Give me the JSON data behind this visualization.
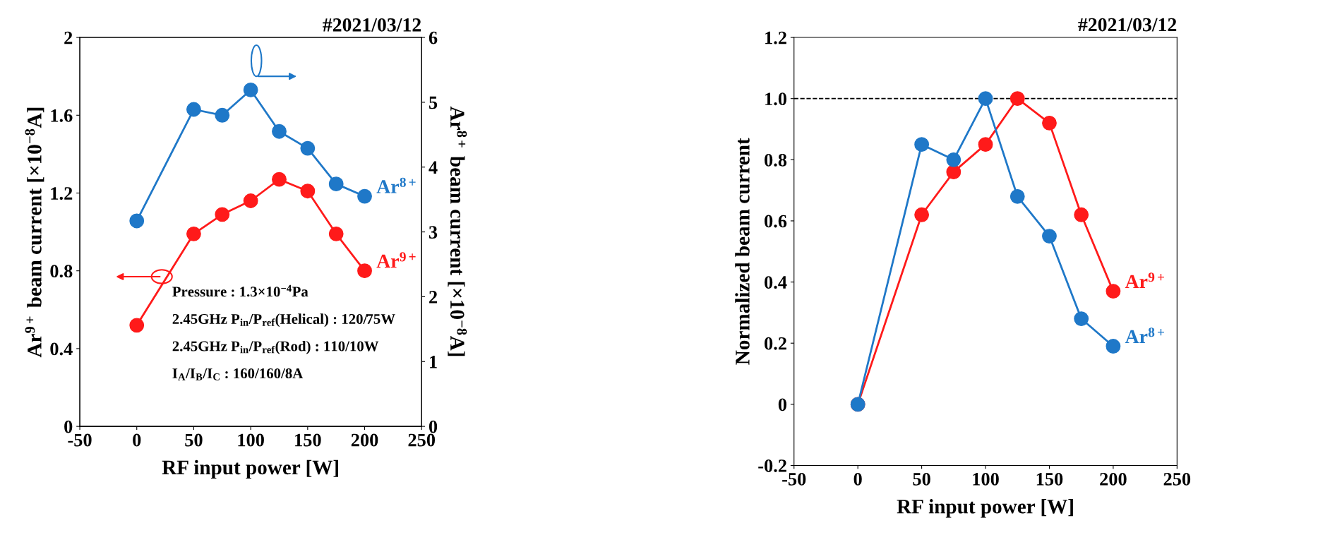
{
  "chart_data": [
    {
      "type": "line",
      "xlabel": "RF input power [W]",
      "ylabel": "Ar$^{9+}$ beam current [×10$^{−8}$A]",
      "y2label": "Ar$^{8+}$ beam current [×10$^{−8}$A]",
      "x": [
        0,
        50,
        75,
        100,
        125,
        150,
        175,
        200
      ],
      "series": [
        {
          "name": "Ar$^{8+}$",
          "color": "#1f78c8",
          "axis": "y2",
          "values": [
            3.17,
            4.89,
            4.8,
            5.19,
            4.55,
            4.29,
            3.74,
            3.55
          ]
        },
        {
          "name": "Ar$^{9+}$",
          "color": "#ff1a1a",
          "values": [
            0.52,
            0.99,
            1.09,
            1.16,
            1.27,
            1.21,
            0.99,
            0.8
          ]
        }
      ],
      "xlim": [
        -50,
        250
      ],
      "xticks": [
        {
          "value": -50,
          "label": "-50"
        },
        0,
        50,
        100,
        150,
        200,
        250
      ],
      "ylim": [
        0,
        2
      ],
      "yticks": [
        0,
        0.4,
        0.8,
        1.2,
        1.6,
        2
      ],
      "y2lim": [
        0,
        6
      ],
      "y2ticks": [
        0,
        1,
        2,
        3,
        4,
        5,
        6
      ],
      "marker": "circle",
      "grid": false,
      "legend": false,
      "annotations": [
        "#2021/03/12",
        "Pressure : 1.3×10$^{−4}$Pa",
        "2.45GHz P$_{in}$/P$_{ref}$(Helical) : 120/75W",
        "2.45GHz P$_{in}$/P$_{ref}$(Rod) : 110/10W",
        "I$_{A}$/I$_{B}$/I$_{C}$ : 160/160/8A"
      ]
    },
    {
      "type": "line",
      "xlabel": "RF input power [W]",
      "ylabel": "Normalized beam current",
      "x": [
        0,
        50,
        75,
        100,
        125,
        150,
        175,
        200
      ],
      "series": [
        {
          "name": "Ar$^{9+}$",
          "color": "#ff1a1a",
          "values": [
            0,
            0.62,
            0.76,
            0.85,
            1.0,
            0.92,
            0.62,
            0.37
          ]
        },
        {
          "name": "Ar$^{8+}$",
          "color": "#1f78c8",
          "values": [
            0,
            0.85,
            0.8,
            1.0,
            0.68,
            0.55,
            0.28,
            0.19
          ]
        }
      ],
      "xlim": [
        -50,
        250
      ],
      "xticks": [
        {
          "value": -50,
          "label": "-50"
        },
        0,
        50,
        100,
        150,
        200,
        250
      ],
      "ylim": [
        -0.2,
        1.2
      ],
      "yticks": [
        {
          "value": -0.2,
          "label": "-0.2"
        },
        0,
        0.2,
        0.4,
        0.6,
        0.8,
        {
          "value": 1.0,
          "label": "1.0"
        },
        1.2
      ],
      "ref_lines": [
        {
          "axis": "y",
          "value": 1.0,
          "color": "#000000",
          "line_style": "dashed"
        }
      ],
      "marker": "circle",
      "grid": false,
      "legend": false,
      "annotations": [
        "#2021/03/12"
      ]
    }
  ]
}
